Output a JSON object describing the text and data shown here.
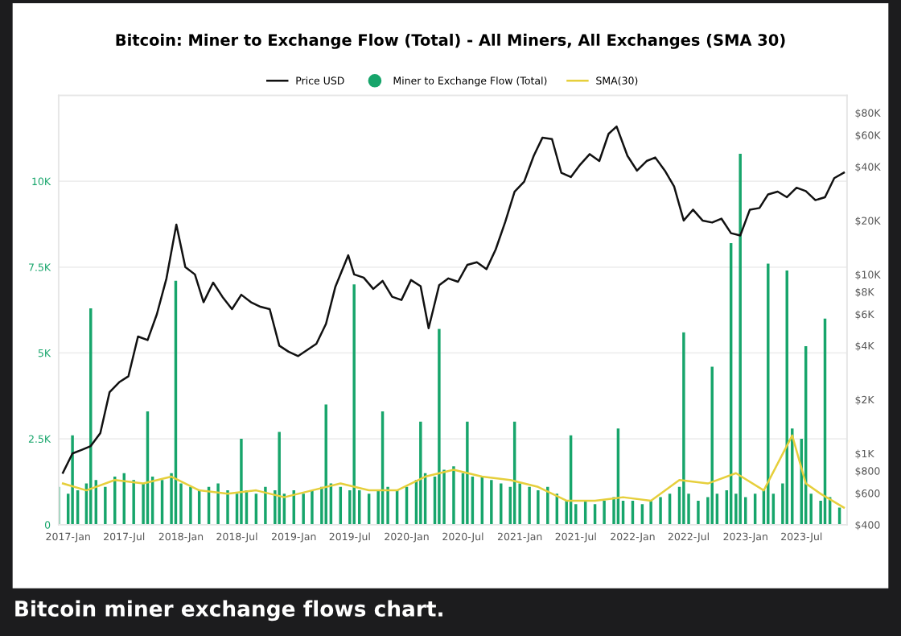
{
  "chart_data": {
    "type": "bar",
    "title": "Bitcoin: Miner to Exchange Flow (Total) - All Miners, All Exchanges (SMA 30)",
    "annotations": [
      "Bitcoin miner exchange flows chart."
    ],
    "xlim": [
      "2016-12-01",
      "2023-11-25"
    ],
    "xticks": [
      {
        "value": "2017-01-01",
        "label": "2017-Jan"
      },
      {
        "value": "2017-07-01",
        "label": "2017-Jul"
      },
      {
        "value": "2018-01-01",
        "label": "2018-Jan"
      },
      {
        "value": "2018-07-01",
        "label": "2018-Jul"
      },
      {
        "value": "2019-01-01",
        "label": "2019-Jan"
      },
      {
        "value": "2019-07-01",
        "label": "2019-Jul"
      },
      {
        "value": "2020-01-01",
        "label": "2020-Jan"
      },
      {
        "value": "2020-07-01",
        "label": "2020-Jul"
      },
      {
        "value": "2021-01-01",
        "label": "2021-Jan"
      },
      {
        "value": "2021-07-01",
        "label": "2021-Jul"
      },
      {
        "value": "2022-01-01",
        "label": "2022-Jan"
      },
      {
        "value": "2022-07-01",
        "label": "2022-Jul"
      },
      {
        "value": "2023-01-01",
        "label": "2023-Jan"
      },
      {
        "value": "2023-07-01",
        "label": "2023-Jul"
      }
    ],
    "ylim": [
      0,
      12500
    ],
    "yticks": [
      0,
      {
        "value": 2500,
        "label": "2.5K"
      },
      {
        "value": 5000,
        "label": "5K"
      },
      {
        "value": 7500,
        "label": "7.5K"
      },
      {
        "value": 10000,
        "label": "10K"
      }
    ],
    "y2lim": [
      400,
      100000
    ],
    "y2ticks": [
      {
        "value": 400,
        "label": "$400"
      },
      {
        "value": 600,
        "label": "$600"
      },
      {
        "value": 800,
        "label": "$800"
      },
      {
        "value": 1000,
        "label": "$1K"
      },
      {
        "value": 2000,
        "label": "$2K"
      },
      {
        "value": 4000,
        "label": "$4K"
      },
      {
        "value": 6000,
        "label": "$6K"
      },
      {
        "value": 8000,
        "label": "$8K"
      },
      {
        "value": 10000,
        "label": "$10K"
      },
      {
        "value": 20000,
        "label": "$20K"
      },
      {
        "value": 40000,
        "label": "$40K"
      },
      {
        "value": 60000,
        "label": "$60K"
      },
      {
        "value": 80000,
        "label": "$80K"
      }
    ],
    "log": "y2",
    "grid": "y",
    "legend": "top",
    "series": [
      {
        "name": "Price USD",
        "type": "line",
        "axis": "y2",
        "color": "#111111",
        "x": [
          "2016-12-15",
          "2017-01-15",
          "2017-02-15",
          "2017-03-15",
          "2017-04-15",
          "2017-05-15",
          "2017-06-15",
          "2017-07-15",
          "2017-08-15",
          "2017-09-15",
          "2017-10-15",
          "2017-11-15",
          "2017-12-17",
          "2018-01-15",
          "2018-02-15",
          "2018-03-15",
          "2018-04-15",
          "2018-05-15",
          "2018-06-15",
          "2018-07-15",
          "2018-08-15",
          "2018-09-15",
          "2018-10-15",
          "2018-11-15",
          "2018-12-15",
          "2019-01-15",
          "2019-02-15",
          "2019-03-15",
          "2019-04-15",
          "2019-05-15",
          "2019-06-26",
          "2019-07-15",
          "2019-08-15",
          "2019-09-15",
          "2019-10-15",
          "2019-11-15",
          "2019-12-15",
          "2020-01-15",
          "2020-02-15",
          "2020-03-12",
          "2020-04-15",
          "2020-05-15",
          "2020-06-15",
          "2020-07-15",
          "2020-08-15",
          "2020-09-15",
          "2020-10-15",
          "2020-11-15",
          "2020-12-15",
          "2021-01-15",
          "2021-02-15",
          "2021-03-15",
          "2021-04-15",
          "2021-05-15",
          "2021-06-15",
          "2021-07-15",
          "2021-08-15",
          "2021-09-15",
          "2021-10-15",
          "2021-11-10",
          "2021-12-15",
          "2022-01-15",
          "2022-02-15",
          "2022-03-15",
          "2022-04-15",
          "2022-05-15",
          "2022-06-15",
          "2022-07-15",
          "2022-08-15",
          "2022-09-15",
          "2022-10-15",
          "2022-11-15",
          "2022-12-15",
          "2023-01-15",
          "2023-02-15",
          "2023-03-15",
          "2023-04-15",
          "2023-05-15",
          "2023-06-15",
          "2023-07-15",
          "2023-08-15",
          "2023-09-15",
          "2023-10-15",
          "2023-11-15"
        ],
        "values": [
          780,
          1000,
          1050,
          1100,
          1300,
          2200,
          2500,
          2700,
          4500,
          4300,
          6000,
          9500,
          19000,
          11000,
          10000,
          7000,
          9000,
          7500,
          6400,
          7700,
          7000,
          6600,
          6400,
          4000,
          3700,
          3500,
          3800,
          4100,
          5300,
          8500,
          12800,
          10000,
          9600,
          8300,
          9200,
          7500,
          7200,
          9300,
          8600,
          5000,
          8700,
          9500,
          9100,
          11300,
          11700,
          10700,
          13800,
          19700,
          29000,
          33000,
          46000,
          58000,
          57000,
          37000,
          35000,
          41000,
          47000,
          43000,
          61000,
          67000,
          46000,
          38000,
          43000,
          45000,
          38000,
          31000,
          20000,
          23000,
          20000,
          19500,
          20500,
          17000,
          16500,
          23000,
          23500,
          28000,
          29000,
          27000,
          30500,
          29200,
          26000,
          27000,
          34500,
          37000
        ]
      },
      {
        "name": "Miner to Exchange Flow (Total)",
        "color": "#17a56b",
        "x": [
          "2016-12-01",
          "2017-01-01",
          "2017-01-15",
          "2017-02-01",
          "2017-03-01",
          "2017-03-15",
          "2017-04-01",
          "2017-05-01",
          "2017-06-01",
          "2017-07-01",
          "2017-08-01",
          "2017-09-01",
          "2017-09-15",
          "2017-10-01",
          "2017-11-01",
          "2017-12-01",
          "2017-12-15",
          "2018-01-01",
          "2018-02-01",
          "2018-03-01",
          "2018-04-01",
          "2018-05-01",
          "2018-06-01",
          "2018-07-01",
          "2018-07-15",
          "2018-08-01",
          "2018-09-01",
          "2018-10-01",
          "2018-11-01",
          "2018-11-15",
          "2018-12-01",
          "2019-01-01",
          "2019-02-01",
          "2019-03-01",
          "2019-04-01",
          "2019-04-15",
          "2019-05-01",
          "2019-06-01",
          "2019-07-01",
          "2019-07-15",
          "2019-08-01",
          "2019-09-01",
          "2019-10-01",
          "2019-10-15",
          "2019-11-01",
          "2019-12-01",
          "2020-01-01",
          "2020-02-01",
          "2020-02-15",
          "2020-03-01",
          "2020-04-01",
          "2020-04-15",
          "2020-05-01",
          "2020-06-01",
          "2020-07-01",
          "2020-07-15",
          "2020-08-01",
          "2020-09-01",
          "2020-10-01",
          "2020-11-01",
          "2020-12-01",
          "2020-12-15",
          "2021-01-01",
          "2021-02-01",
          "2021-03-01",
          "2021-04-01",
          "2021-05-01",
          "2021-06-01",
          "2021-06-15",
          "2021-07-01",
          "2021-08-01",
          "2021-09-01",
          "2021-10-01",
          "2021-11-01",
          "2021-11-15",
          "2021-12-01",
          "2022-01-01",
          "2022-02-01",
          "2022-03-01",
          "2022-04-01",
          "2022-05-01",
          "2022-06-01",
          "2022-06-15",
          "2022-07-01",
          "2022-08-01",
          "2022-09-01",
          "2022-09-15",
          "2022-10-01",
          "2022-11-01",
          "2022-11-15",
          "2022-12-01",
          "2022-12-15",
          "2023-01-01",
          "2023-02-01",
          "2023-03-01",
          "2023-03-15",
          "2023-04-01",
          "2023-05-01",
          "2023-05-15",
          "2023-06-01",
          "2023-07-01",
          "2023-07-15",
          "2023-08-01",
          "2023-09-01",
          "2023-09-15",
          "2023-10-01",
          "2023-11-01"
        ],
        "values": [
          1100,
          900,
          2600,
          1000,
          1200,
          6300,
          1300,
          1100,
          1400,
          1500,
          1300,
          1200,
          3300,
          1400,
          1300,
          1500,
          7100,
          1200,
          1100,
          1000,
          1100,
          1200,
          1000,
          900,
          2500,
          1000,
          900,
          1100,
          1000,
          2700,
          900,
          1000,
          900,
          1000,
          1100,
          3500,
          1200,
          1100,
          1000,
          7000,
          1000,
          900,
          1000,
          3300,
          1100,
          1000,
          1100,
          1300,
          3000,
          1500,
          1400,
          5700,
          1600,
          1700,
          1500,
          3000,
          1400,
          1400,
          1300,
          1200,
          1100,
          3000,
          1200,
          1100,
          1000,
          1100,
          900,
          700,
          2600,
          600,
          700,
          600,
          700,
          800,
          2800,
          700,
          700,
          600,
          700,
          800,
          900,
          1100,
          5600,
          900,
          700,
          800,
          4600,
          900,
          1000,
          8200,
          900,
          10800,
          800,
          900,
          1000,
          7600,
          900,
          1200,
          7400,
          2800,
          2500,
          5200,
          900,
          700,
          6000,
          800,
          500
        ]
      },
      {
        "name": "SMA(30)",
        "type": "line",
        "color": "#e6cf3c",
        "x": [
          "2016-12-15",
          "2017-03-01",
          "2017-06-01",
          "2017-09-01",
          "2017-12-01",
          "2018-03-01",
          "2018-06-01",
          "2018-09-01",
          "2018-12-01",
          "2019-03-01",
          "2019-06-01",
          "2019-09-01",
          "2019-12-01",
          "2020-03-01",
          "2020-06-01",
          "2020-09-01",
          "2020-12-01",
          "2021-03-01",
          "2021-06-01",
          "2021-09-01",
          "2021-12-01",
          "2022-03-01",
          "2022-06-01",
          "2022-09-01",
          "2022-12-01",
          "2023-03-01",
          "2023-06-01",
          "2023-07-15",
          "2023-09-01",
          "2023-11-15"
        ],
        "values": [
          1200,
          1000,
          1300,
          1200,
          1400,
          1000,
          900,
          1000,
          800,
          1000,
          1200,
          1000,
          1000,
          1400,
          1600,
          1400,
          1300,
          1100,
          700,
          700,
          800,
          700,
          1300,
          1200,
          1500,
          1000,
          2600,
          1200,
          900,
          500
        ]
      }
    ]
  }
}
